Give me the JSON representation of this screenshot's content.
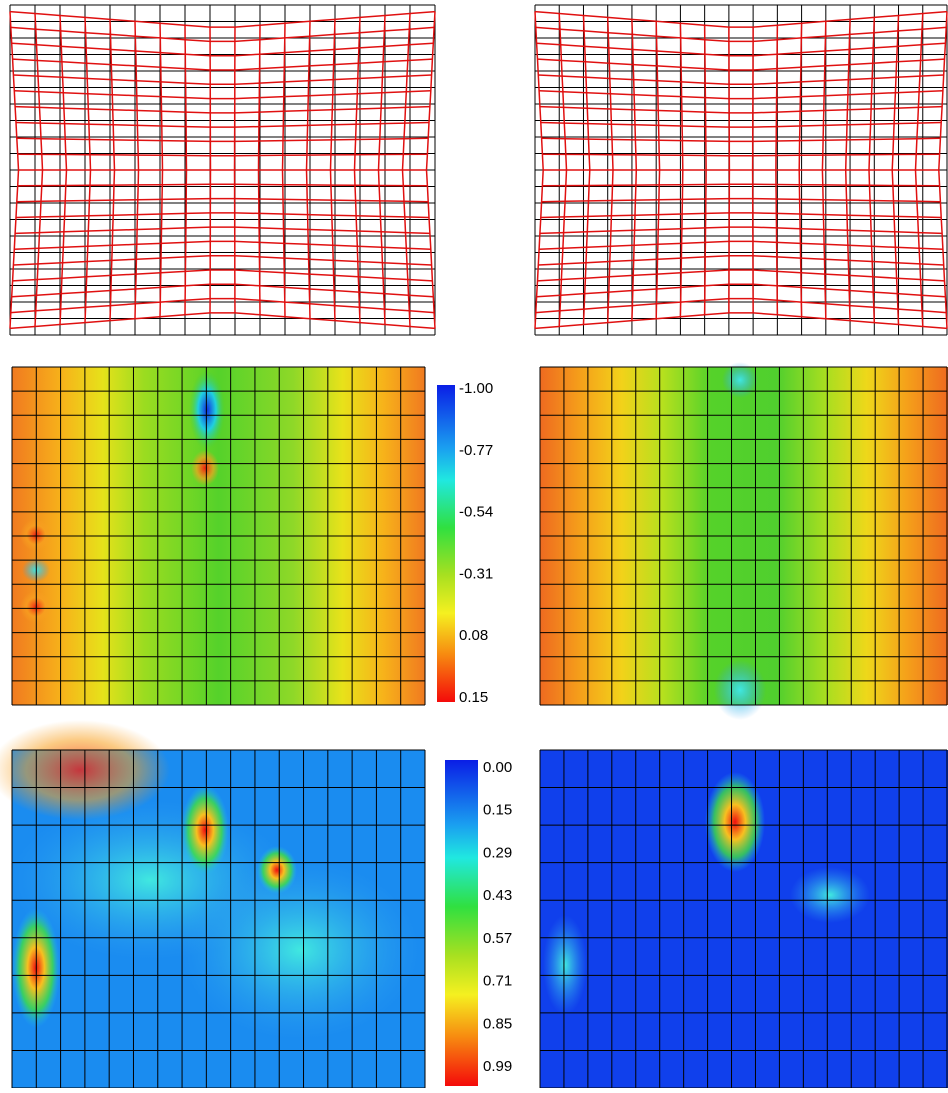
{
  "colorbars": [
    {
      "labels": [
        "-1.00",
        "-0.77",
        "-0.54",
        "-0.31",
        "0.08",
        "0.15"
      ]
    },
    {
      "labels": [
        "0.00",
        "0.15",
        "0.29",
        "0.43",
        "0.57",
        "0.71",
        "0.85",
        "0.99"
      ]
    }
  ]
}
